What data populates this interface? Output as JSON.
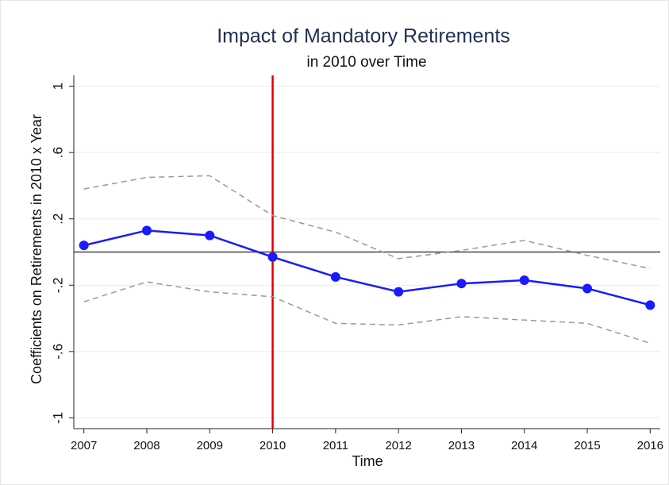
{
  "chart_data": {
    "type": "line",
    "title": "Impact of Mandatory Retirements",
    "subtitle": "in 2010 over Time",
    "x_label": "Time",
    "y_label": "Coefficients on Retirements in 2010 x Year",
    "x": [
      2007,
      2008,
      2009,
      2010,
      2011,
      2012,
      2013,
      2014,
      2015,
      2016
    ],
    "series": [
      {
        "color": "#1a1aff",
        "style": "solid",
        "markers": true,
        "values": [
          0.04,
          0.13,
          0.1,
          -0.03,
          -0.15,
          -0.24,
          -0.19,
          -0.17,
          -0.22,
          -0.32
        ]
      },
      {
        "color": "#999999",
        "style": "dashed",
        "markers": false,
        "values": [
          0.38,
          0.45,
          0.46,
          0.22,
          0.12,
          -0.04,
          0.01,
          0.07,
          -0.02,
          -0.1
        ]
      },
      {
        "color": "#999999",
        "style": "dashed",
        "markers": false,
        "values": [
          -0.3,
          -0.18,
          -0.24,
          -0.27,
          -0.43,
          -0.44,
          -0.39,
          -0.41,
          -0.43,
          -0.55
        ]
      }
    ],
    "xlim": [
      2006.84,
      2016.16
    ],
    "ylim": [
      -1.065,
      1.065
    ],
    "xticks": [
      2007,
      2008,
      2009,
      2010,
      2011,
      2012,
      2013,
      2014,
      2015,
      2016
    ],
    "yticks": [
      1,
      {
        "value": 0.6,
        "label": ".6"
      },
      {
        "value": 0.2,
        "label": ".2"
      },
      {
        "value": -0.2,
        "label": "-.2"
      },
      {
        "value": -0.6,
        "label": "-.6"
      },
      -1
    ],
    "grid": true,
    "vline": 2010,
    "vline_color": "#e00000",
    "hline": 0,
    "hline_color": "#444444"
  }
}
